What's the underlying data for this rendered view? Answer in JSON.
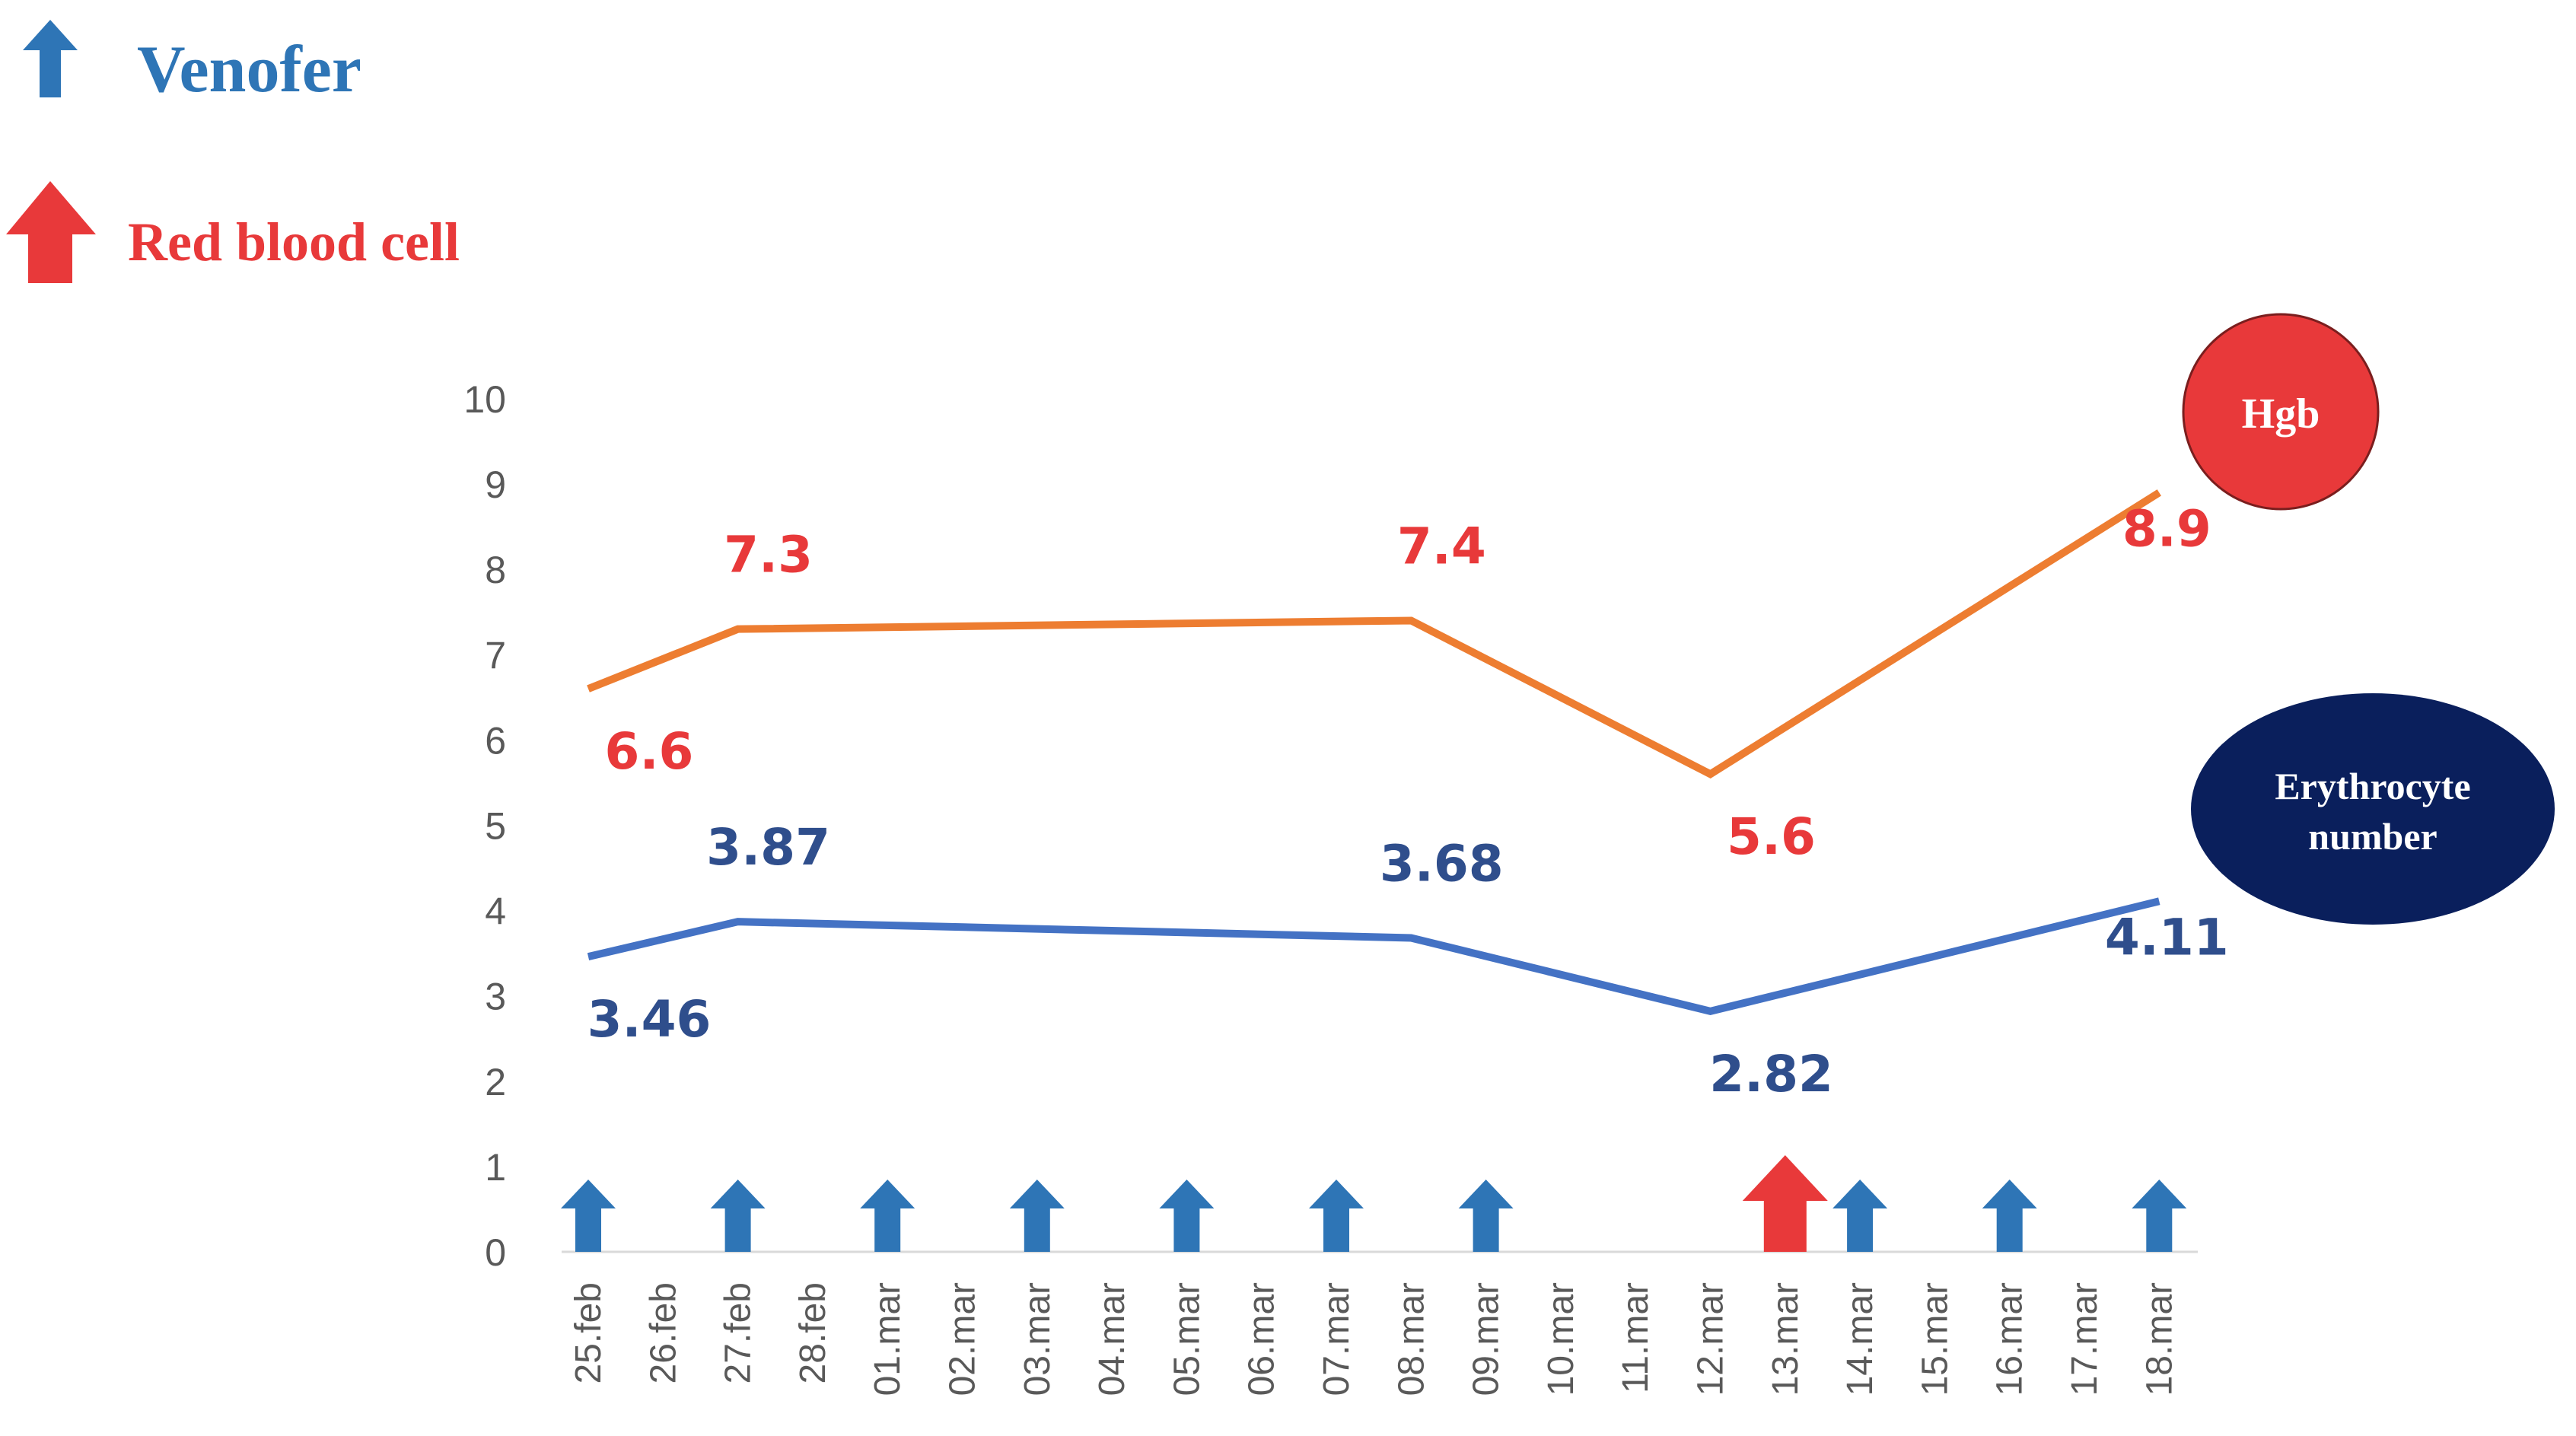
{
  "legend": {
    "venofer": {
      "label": "Venofer",
      "color": "#2E75B6",
      "icon": "arrow-up-icon"
    },
    "rbc": {
      "label": "Red blood cell",
      "color": "#E8393A",
      "icon": "arrow-up-icon"
    }
  },
  "badges": {
    "hgb": {
      "label": "Hgb",
      "color": "#E8393A"
    },
    "erythrocyte": {
      "line1": "Erythrocyte",
      "line2": "number",
      "color": "#0A1F5C"
    }
  },
  "chart_data": {
    "type": "line",
    "categories": [
      "25.feb",
      "26.feb",
      "27.feb",
      "28.feb",
      "01.mar",
      "02.mar",
      "03.mar",
      "04.mar",
      "05.mar",
      "06.mar",
      "07.mar",
      "08.mar",
      "09.mar",
      "10.mar",
      "11.mar",
      "12.mar",
      "13.mar",
      "14.mar",
      "15.mar",
      "16.mar",
      "17.mar",
      "18.mar"
    ],
    "yticks": [
      0,
      1,
      2,
      3,
      4,
      5,
      6,
      7,
      8,
      9,
      10
    ],
    "ylim": [
      0,
      10
    ],
    "grid": false,
    "series": [
      {
        "name": "Hgb",
        "line_color": "#ED7D31",
        "label_color": "#E8393A",
        "points": [
          {
            "x": "25.feb",
            "y": 6.6,
            "label": "6.6",
            "label_pos": "below"
          },
          {
            "x": "27.feb",
            "y": 7.3,
            "label": "7.3",
            "label_pos": "above"
          },
          {
            "x": "08.mar",
            "y": 7.4,
            "label": "7.4",
            "label_pos": "above"
          },
          {
            "x": "12.mar",
            "y": 5.6,
            "label": "5.6",
            "label_pos": "below"
          },
          {
            "x": "18.mar",
            "y": 8.9,
            "label": "8.9",
            "label_pos": "below"
          }
        ]
      },
      {
        "name": "Erythrocyte number",
        "line_color": "#4472C4",
        "label_color": "#2F4E8C",
        "points": [
          {
            "x": "25.feb",
            "y": 3.46,
            "label": "3.46",
            "label_pos": "below"
          },
          {
            "x": "27.feb",
            "y": 3.87,
            "label": "3.87",
            "label_pos": "above"
          },
          {
            "x": "08.mar",
            "y": 3.68,
            "label": "3.68",
            "label_pos": "above"
          },
          {
            "x": "12.mar",
            "y": 2.82,
            "label": "2.82",
            "label_pos": "below"
          },
          {
            "x": "18.mar",
            "y": 4.11,
            "label": "4.11",
            "label_pos": "below"
          }
        ]
      }
    ],
    "markers": [
      {
        "x": "25.feb",
        "type": "Venofer"
      },
      {
        "x": "27.feb",
        "type": "Venofer"
      },
      {
        "x": "01.mar",
        "type": "Venofer"
      },
      {
        "x": "03.mar",
        "type": "Venofer"
      },
      {
        "x": "05.mar",
        "type": "Venofer"
      },
      {
        "x": "07.mar",
        "type": "Venofer"
      },
      {
        "x": "09.mar",
        "type": "Venofer"
      },
      {
        "x": "13.mar",
        "type": "Red blood cell"
      },
      {
        "x": "14.mar",
        "type": "Venofer"
      },
      {
        "x": "16.mar",
        "type": "Venofer"
      },
      {
        "x": "18.mar",
        "type": "Venofer"
      }
    ]
  }
}
